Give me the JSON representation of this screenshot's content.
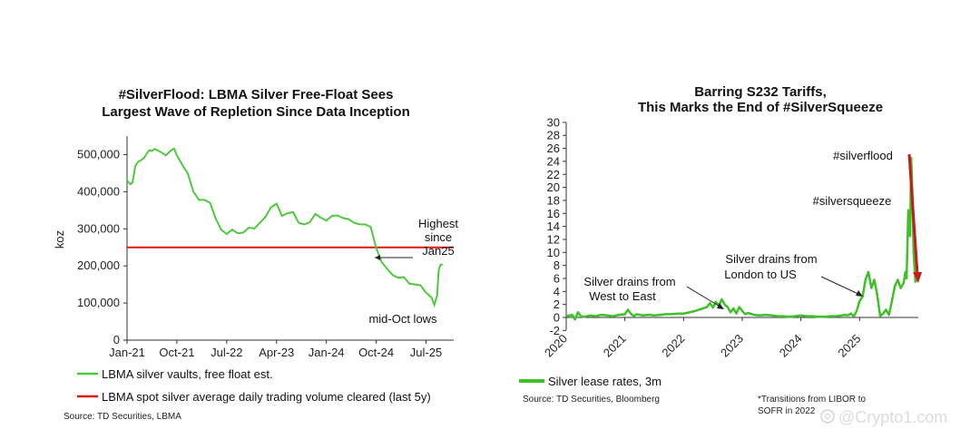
{
  "chart_data": [
    {
      "type": "line",
      "title_lines": [
        "#SilverFlood: LBMA Silver Free-Float Sees",
        "Largest Wave of Repletion Since Data Inception"
      ],
      "ylabel": "koz",
      "ylim": [
        0,
        550000
      ],
      "y_ticks": [
        "0",
        "100,000",
        "200,000",
        "300,000",
        "400,000",
        "500,000"
      ],
      "y_tick_values": [
        0,
        100000,
        200000,
        300000,
        400000,
        500000
      ],
      "x_ticks": [
        "Jan-21",
        "Oct-21",
        "Jul-22",
        "Apr-23",
        "Jan-24",
        "Oct-24",
        "Jul-25"
      ],
      "x_tick_t": [
        0,
        9,
        18,
        27,
        36,
        45,
        54
      ],
      "series": [
        {
          "name": "LBMA silver vaults, free float est.",
          "color": "#4ec93d",
          "t": [
            0,
            0.6,
            1,
            1.5,
            2,
            3,
            4,
            4.5,
            5,
            6,
            7,
            8,
            8.5,
            9,
            10,
            11,
            12,
            13,
            14,
            15,
            16,
            17,
            18,
            19,
            20,
            21,
            22,
            23,
            24,
            25,
            26,
            27,
            28,
            29,
            30,
            30.5,
            31,
            32,
            33,
            34,
            35,
            36,
            37,
            38,
            39,
            40,
            41,
            42,
            43,
            44,
            45,
            46,
            47,
            48,
            49,
            50,
            51,
            52,
            53,
            54,
            55,
            55.5,
            56,
            56.3,
            56.6,
            57
          ],
          "values": [
            430000,
            420000,
            425000,
            470000,
            480000,
            490000,
            512000,
            510000,
            515000,
            508000,
            498000,
            512000,
            516000,
            498000,
            472000,
            448000,
            400000,
            378000,
            378000,
            370000,
            328000,
            298000,
            286000,
            298000,
            288000,
            290000,
            303000,
            301000,
            316000,
            332000,
            358000,
            368000,
            335000,
            342000,
            345000,
            330000,
            316000,
            312000,
            318000,
            340000,
            330000,
            322000,
            335000,
            336000,
            329000,
            326000,
            316000,
            312000,
            312000,
            305000,
            248000,
            210000,
            192000,
            175000,
            168000,
            170000,
            152000,
            150000,
            148000,
            128000,
            115000,
            95000,
            120000,
            190000,
            203000,
            204000
          ]
        },
        {
          "name": "LBMA spot silver average daily trading volume cleared (last 5y)",
          "color": "#e3120b",
          "t": [
            0,
            59
          ],
          "values": [
            250000,
            250000
          ]
        }
      ],
      "annotations": [
        {
          "lines": [
            "Highest",
            "since",
            "Jan25"
          ]
        },
        {
          "lines": [
            "mid-Oct lows"
          ]
        }
      ],
      "source": "Source: TD Securities, LBMA"
    },
    {
      "type": "line",
      "title_lines": [
        "Barring S232 Tariffs,",
        "This Marks the End of #SilverSqueeze"
      ],
      "ylim": [
        -2,
        30
      ],
      "y_ticks": [
        "-2",
        "0",
        "2",
        "4",
        "6",
        "8",
        "10",
        "12",
        "14",
        "16",
        "18",
        "20",
        "22",
        "24",
        "26",
        "28",
        "30"
      ],
      "y_tick_values": [
        -2,
        0,
        2,
        4,
        6,
        8,
        10,
        12,
        14,
        16,
        18,
        20,
        22,
        24,
        26,
        28,
        30
      ],
      "x_ticks": [
        "2020",
        "2021",
        "2022",
        "2023",
        "2024",
        "2025"
      ],
      "x_tick_t": [
        2020,
        2021,
        2022,
        2023,
        2024,
        2025
      ],
      "series": [
        {
          "name": "Silver lease rates, 3m",
          "color": "#3fbf28",
          "t": [
            2020.0,
            2020.05,
            2020.1,
            2020.15,
            2020.2,
            2020.25,
            2020.3,
            2020.4,
            2020.5,
            2020.6,
            2020.7,
            2020.8,
            2020.9,
            2021.0,
            2021.05,
            2021.1,
            2021.15,
            2021.2,
            2021.3,
            2021.4,
            2021.5,
            2021.6,
            2021.7,
            2021.8,
            2021.9,
            2022.0,
            2022.1,
            2022.2,
            2022.3,
            2022.4,
            2022.45,
            2022.5,
            2022.55,
            2022.6,
            2022.65,
            2022.7,
            2022.75,
            2022.8,
            2022.85,
            2022.9,
            2022.95,
            2023.0,
            2023.05,
            2023.1,
            2023.2,
            2023.3,
            2023.4,
            2023.5,
            2023.6,
            2023.7,
            2023.8,
            2023.9,
            2024.0,
            2024.1,
            2024.2,
            2024.3,
            2024.4,
            2024.5,
            2024.6,
            2024.7,
            2024.75,
            2024.8,
            2024.85,
            2024.9,
            2024.95,
            2025.0,
            2025.05,
            2025.1,
            2025.15,
            2025.2,
            2025.25,
            2025.3,
            2025.35,
            2025.4,
            2025.45,
            2025.5,
            2025.55,
            2025.6,
            2025.65,
            2025.7,
            2025.75,
            2025.78,
            2025.8,
            2025.83,
            2025.86,
            2025.88,
            2025.9,
            2025.92,
            2025.95,
            2025.98
          ],
          "values": [
            0.2,
            0.3,
            0.4,
            -0.3,
            0.8,
            0.2,
            0.1,
            0.3,
            0.2,
            0.4,
            0.3,
            0.2,
            0.4,
            0.5,
            1.2,
            0.6,
            0.2,
            0.5,
            0.3,
            0.4,
            0.3,
            0.4,
            0.5,
            0.5,
            0.6,
            0.6,
            0.8,
            1.0,
            1.3,
            1.6,
            2.2,
            1.5,
            2.4,
            1.8,
            2.8,
            2.0,
            1.6,
            0.8,
            1.4,
            0.6,
            1.6,
            1.0,
            0.5,
            0.7,
            0.4,
            0.3,
            0.4,
            0.3,
            0.2,
            0.2,
            0.1,
            0.2,
            0.3,
            0.2,
            0.2,
            0.1,
            0.1,
            0.2,
            0.2,
            0.3,
            0.4,
            0.3,
            0.6,
            0.2,
            1.0,
            2.5,
            3.2,
            5.8,
            7.0,
            4.5,
            5.8,
            3.5,
            0.2,
            0.6,
            1.2,
            0.4,
            2.5,
            4.8,
            5.8,
            4.5,
            5.3,
            7.0,
            6.0,
            16.5,
            12.5,
            24.5,
            19.0,
            10.0,
            5.5,
            5.8
          ]
        }
      ],
      "annotations": [
        {
          "lines": [
            "#silverflood"
          ]
        },
        {
          "lines": [
            "#silversqueeze"
          ]
        },
        {
          "lines": [
            "Silver drains from",
            "London to US"
          ]
        },
        {
          "lines": [
            "Silver drains from",
            "West to East"
          ]
        }
      ],
      "source": "Source: TD Securities, Bloomberg",
      "footnote_lines": [
        "*Transitions from LIBOR to",
        "SOFR in 2022"
      ]
    }
  ],
  "watermark": {
    "icon": "at-icon",
    "text": "@Crypto1.com"
  },
  "colors": {
    "left_line": "#4ec93d",
    "threshold": "#e3120b",
    "right_line": "#3fbf28",
    "arrow": "#c8191c"
  }
}
